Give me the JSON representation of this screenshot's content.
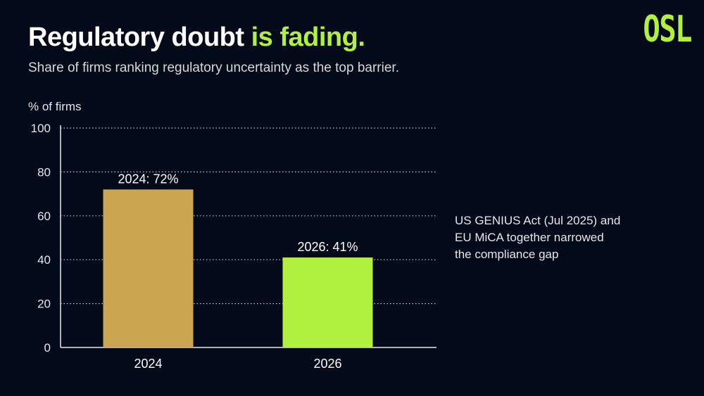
{
  "header": {
    "title_main": "Regulatory doubt",
    "title_accent": "is fading.",
    "subtitle": "Share of firms ranking regulatory uncertainty as the top barrier."
  },
  "brand": {
    "logo_text": "OSL",
    "accent_color": "#b0f03e",
    "background_color": "#050a1a"
  },
  "annotation": {
    "text": "US GENIUS Act (Jul 2025) and\nEU MiCA together narrowed\nthe compliance gap"
  },
  "chart_data": {
    "type": "bar",
    "ylabel": "% of firms",
    "categories": [
      "2024",
      "2026"
    ],
    "values": [
      72,
      41
    ],
    "data_labels": [
      "2024: 72%",
      "2026: 41%"
    ],
    "bar_colors": [
      "#c9a64f",
      "#b0f03e"
    ],
    "ylim": [
      0,
      100
    ],
    "yticks": [
      0,
      20,
      40,
      60,
      80,
      100
    ],
    "grid": true,
    "grid_style": "dotted"
  }
}
